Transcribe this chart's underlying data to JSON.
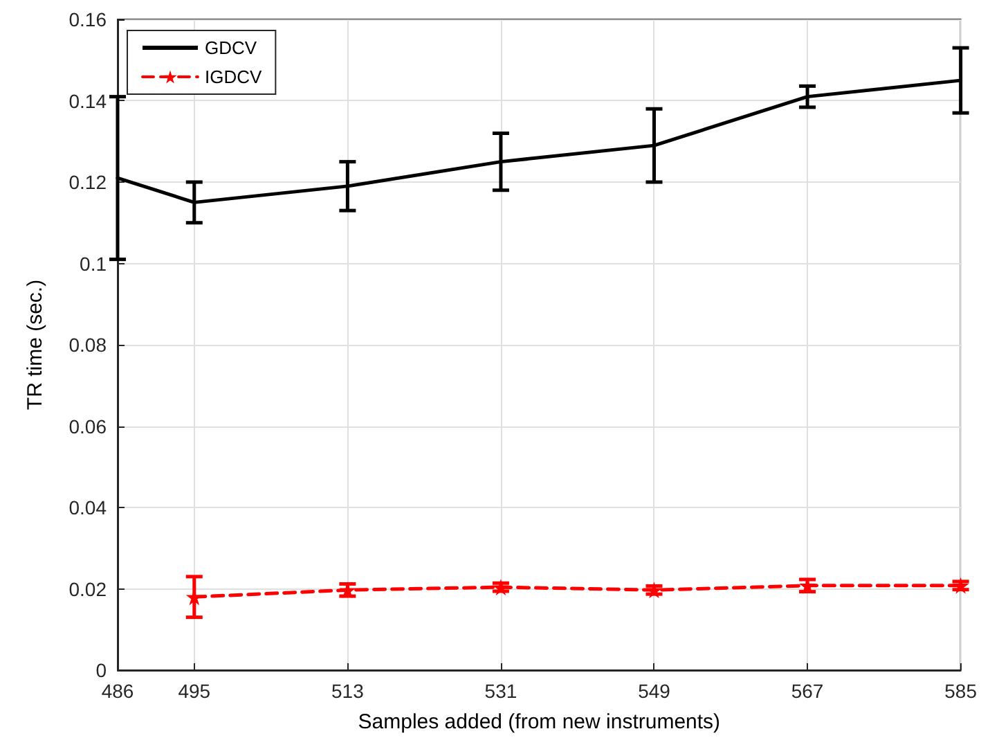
{
  "chart_data": {
    "type": "line",
    "xlabel": "Samples added (from new instruments)",
    "ylabel": "TR time (sec.)",
    "xlim": [
      486,
      585
    ],
    "xticks": [
      486,
      495,
      513,
      531,
      549,
      567,
      585
    ],
    "ylim": [
      0,
      0.16
    ],
    "yticks": [
      0,
      0.02,
      0.04,
      0.06,
      0.08,
      0.1,
      0.12,
      0.14,
      0.16
    ],
    "grid": true,
    "legend": "top left",
    "series": [
      {
        "name": "GDCV",
        "color": "#000000",
        "marker": "none",
        "line_style": "solid",
        "x": [
          486,
          495,
          513,
          531,
          549,
          567,
          585
        ],
        "values": [
          0.121,
          0.115,
          0.119,
          0.125,
          0.129,
          0.141,
          0.145
        ],
        "errors": [
          0.02,
          0.005,
          0.006,
          0.007,
          0.009,
          0.0026,
          0.008
        ]
      },
      {
        "name": "IGDCV",
        "color": "#ff0000",
        "marker": "star",
        "line_style": "dashed",
        "x": [
          495,
          513,
          531,
          549,
          567,
          585
        ],
        "values": [
          0.018,
          0.0197,
          0.0204,
          0.0197,
          0.0208,
          0.0208
        ],
        "errors": [
          0.005,
          0.0015,
          0.001,
          0.001,
          0.0015,
          0.001
        ]
      }
    ]
  }
}
